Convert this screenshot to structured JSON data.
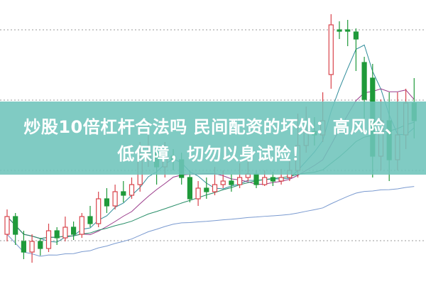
{
  "title_line1": "炒股10倍杠杆合法吗 民间配资的坏处：高风险、",
  "title_line2": "低保障，切勿以身试险！",
  "colors": {
    "up": "#d9434b",
    "down": "#1f9a3a",
    "banner": "#6ec4bb",
    "ma5": "#2f8c9a",
    "ma10": "#9a3b8a",
    "ma20": "#2a8f6a",
    "ma60": "#7a9ad0"
  },
  "chart_data": {
    "type": "candlestick",
    "title": "",
    "grid": "dotted horizontal",
    "fields": [
      "open",
      "close",
      "high",
      "low"
    ],
    "candles": [
      [
        70,
        95,
        105,
        60
      ],
      [
        95,
        70,
        100,
        55
      ],
      [
        60,
        45,
        75,
        35
      ],
      [
        45,
        60,
        70,
        30
      ],
      [
        60,
        50,
        65,
        40
      ],
      [
        50,
        75,
        85,
        45
      ],
      [
        75,
        65,
        80,
        55
      ],
      [
        65,
        80,
        95,
        60
      ],
      [
        80,
        70,
        88,
        62
      ],
      [
        70,
        95,
        100,
        65
      ],
      [
        95,
        85,
        110,
        80
      ],
      [
        85,
        120,
        130,
        80
      ],
      [
        120,
        110,
        135,
        100
      ],
      [
        110,
        130,
        140,
        105
      ],
      [
        130,
        125,
        145,
        115
      ],
      [
        125,
        140,
        150,
        120
      ],
      [
        140,
        175,
        200,
        130
      ],
      [
        175,
        185,
        230,
        165
      ],
      [
        185,
        165,
        190,
        140
      ],
      [
        165,
        180,
        200,
        150
      ],
      [
        180,
        175,
        190,
        160
      ],
      [
        175,
        150,
        185,
        140
      ],
      [
        150,
        120,
        160,
        115
      ],
      [
        120,
        135,
        145,
        110
      ],
      [
        135,
        130,
        150,
        120
      ],
      [
        130,
        140,
        165,
        125
      ],
      [
        140,
        145,
        160,
        135
      ],
      [
        145,
        140,
        155,
        130
      ],
      [
        140,
        150,
        170,
        135
      ],
      [
        150,
        155,
        175,
        145
      ],
      [
        155,
        140,
        160,
        135
      ],
      [
        140,
        150,
        160,
        138
      ],
      [
        150,
        145,
        158,
        138
      ],
      [
        145,
        150,
        162,
        140
      ],
      [
        150,
        160,
        175,
        145
      ],
      [
        160,
        195,
        240,
        150
      ],
      [
        195,
        215,
        250,
        185
      ],
      [
        215,
        210,
        235,
        195
      ],
      [
        210,
        230,
        270,
        200
      ],
      [
        295,
        365,
        380,
        275
      ],
      [
        358,
        356,
        370,
        345
      ],
      [
        358,
        357,
        372,
        335
      ],
      [
        355,
        345,
        360,
        300
      ],
      [
        312,
        260,
        320,
        230
      ],
      [
        290,
        180,
        310,
        150
      ],
      [
        180,
        230,
        260,
        160
      ],
      [
        230,
        175,
        270,
        145
      ],
      [
        175,
        210,
        270,
        160
      ],
      [
        210,
        255,
        275,
        190
      ],
      [
        255,
        230,
        290,
        205
      ]
    ],
    "moving_averages": [
      "MA5",
      "MA10",
      "MA20",
      "MA60"
    ]
  }
}
